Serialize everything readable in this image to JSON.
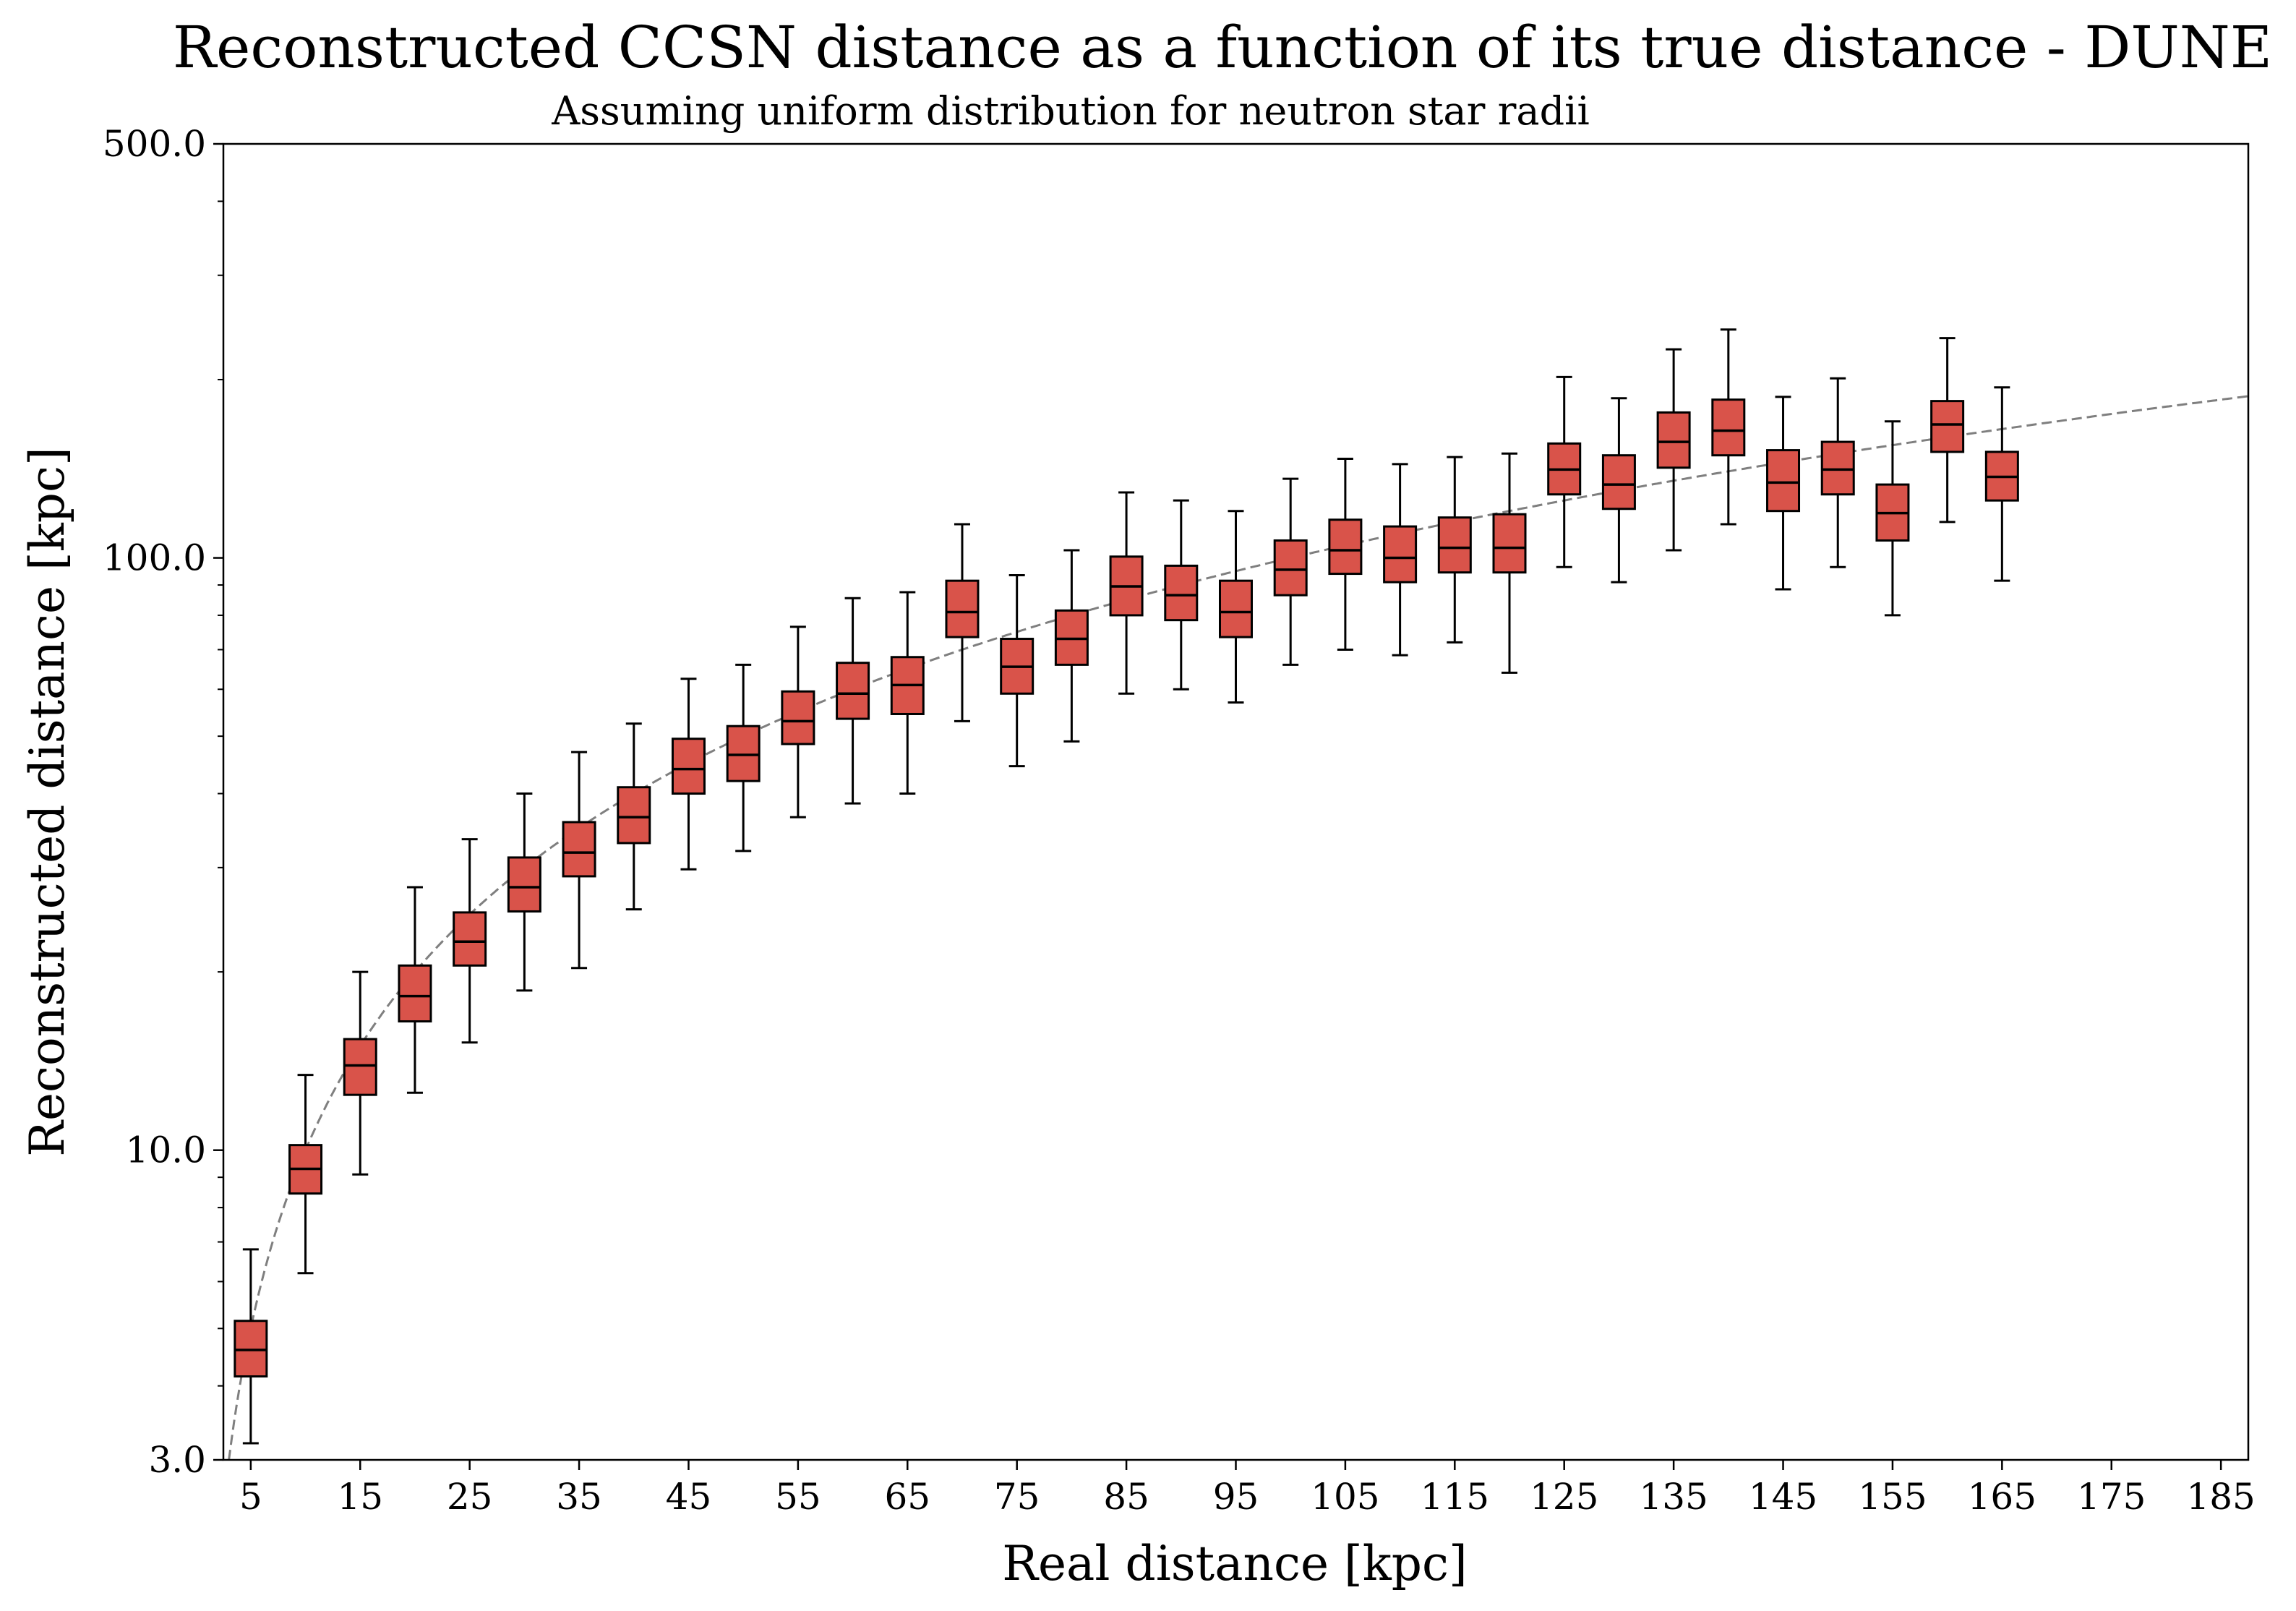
{
  "chart_data": {
    "type": "box",
    "title": "Reconstructed CCSN distance as a function of its true distance - DUNE",
    "subtitle": "Assuming uniform distribution for neutron star radii",
    "xlabel": "Real distance [kpc]",
    "ylabel": "Reconstructed distance [kpc]",
    "xlim": [
      2.5,
      187.5
    ],
    "ylim": [
      3.0,
      500.0
    ],
    "yscale": "log",
    "x_ticks": [
      "5",
      "15",
      "25",
      "35",
      "45",
      "55",
      "65",
      "75",
      "85",
      "95",
      "105",
      "115",
      "125",
      "135",
      "145",
      "155",
      "165",
      "175",
      "185"
    ],
    "y_ticks": [
      "3.0",
      "10.0",
      "100.0",
      "500.0"
    ],
    "grid": false,
    "legend": "none",
    "box_color": "#d9534a",
    "reference_line": {
      "style": "dashed",
      "color": "#7f7f7f",
      "relation": "y = x"
    },
    "boxes": [
      {
        "x": 5,
        "whisker_low": 3.2,
        "q1": 4.15,
        "median": 4.6,
        "q3": 5.15,
        "whisker_high": 6.8
      },
      {
        "x": 10,
        "whisker_low": 6.2,
        "q1": 8.45,
        "median": 9.3,
        "q3": 10.2,
        "whisker_high": 13.4
      },
      {
        "x": 15,
        "whisker_low": 9.1,
        "q1": 12.4,
        "median": 13.9,
        "q3": 15.4,
        "whisker_high": 20.0
      },
      {
        "x": 20,
        "whisker_low": 12.5,
        "q1": 16.5,
        "median": 18.2,
        "q3": 20.5,
        "whisker_high": 27.8
      },
      {
        "x": 25,
        "whisker_low": 15.2,
        "q1": 20.5,
        "median": 22.5,
        "q3": 25.2,
        "whisker_high": 33.5
      },
      {
        "x": 30,
        "whisker_low": 18.6,
        "q1": 25.3,
        "median": 27.8,
        "q3": 31.2,
        "whisker_high": 40.0
      },
      {
        "x": 35,
        "whisker_low": 20.3,
        "q1": 29.0,
        "median": 31.8,
        "q3": 35.8,
        "whisker_high": 47.0
      },
      {
        "x": 40,
        "whisker_low": 25.5,
        "q1": 33.0,
        "median": 36.5,
        "q3": 41.0,
        "whisker_high": 52.5
      },
      {
        "x": 45,
        "whisker_low": 29.8,
        "q1": 40.0,
        "median": 44.0,
        "q3": 49.5,
        "whisker_high": 62.5
      },
      {
        "x": 50,
        "whisker_low": 32.0,
        "q1": 42.0,
        "median": 46.5,
        "q3": 52.0,
        "whisker_high": 66.0
      },
      {
        "x": 55,
        "whisker_low": 36.5,
        "q1": 48.5,
        "median": 53.0,
        "q3": 59.5,
        "whisker_high": 76.5
      },
      {
        "x": 60,
        "whisker_low": 38.5,
        "q1": 53.5,
        "median": 59.0,
        "q3": 66.5,
        "whisker_high": 85.5
      },
      {
        "x": 65,
        "whisker_low": 40.0,
        "q1": 54.5,
        "median": 61.0,
        "q3": 68.0,
        "whisker_high": 87.5
      },
      {
        "x": 70,
        "whisker_low": 53.0,
        "q1": 73.5,
        "median": 81.0,
        "q3": 91.5,
        "whisker_high": 114.0
      },
      {
        "x": 75,
        "whisker_low": 44.5,
        "q1": 59.0,
        "median": 65.5,
        "q3": 73.0,
        "whisker_high": 93.5
      },
      {
        "x": 80,
        "whisker_low": 49.0,
        "q1": 66.0,
        "median": 73.0,
        "q3": 81.5,
        "whisker_high": 103.0
      },
      {
        "x": 85,
        "whisker_low": 59.0,
        "q1": 80.0,
        "median": 89.5,
        "q3": 100.5,
        "whisker_high": 129.0
      },
      {
        "x": 90,
        "whisker_low": 60.0,
        "q1": 78.5,
        "median": 86.5,
        "q3": 97.0,
        "whisker_high": 125.0
      },
      {
        "x": 95,
        "whisker_low": 57.0,
        "q1": 73.5,
        "median": 81.0,
        "q3": 91.5,
        "whisker_high": 120.0
      },
      {
        "x": 100,
        "whisker_low": 66.0,
        "q1": 86.5,
        "median": 95.5,
        "q3": 107.0,
        "whisker_high": 136.0
      },
      {
        "x": 105,
        "whisker_low": 70.0,
        "q1": 94.0,
        "median": 103.0,
        "q3": 116.0,
        "whisker_high": 147.0
      },
      {
        "x": 110,
        "whisker_low": 68.5,
        "q1": 91.0,
        "median": 100.0,
        "q3": 113.0,
        "whisker_high": 144.0
      },
      {
        "x": 115,
        "whisker_low": 72.0,
        "q1": 94.5,
        "median": 104.0,
        "q3": 117.0,
        "whisker_high": 148.0
      },
      {
        "x": 120,
        "whisker_low": 64.0,
        "q1": 94.5,
        "median": 104.0,
        "q3": 118.5,
        "whisker_high": 150.0
      },
      {
        "x": 125,
        "whisker_low": 96.5,
        "q1": 128.0,
        "median": 141.0,
        "q3": 156.0,
        "whisker_high": 202.0
      },
      {
        "x": 130,
        "whisker_low": 91.0,
        "q1": 121.0,
        "median": 133.0,
        "q3": 149.0,
        "whisker_high": 186.0
      },
      {
        "x": 135,
        "whisker_low": 103.0,
        "q1": 142.0,
        "median": 157.0,
        "q3": 176.0,
        "whisker_high": 225.0
      },
      {
        "x": 140,
        "whisker_low": 114.0,
        "q1": 149.0,
        "median": 164.0,
        "q3": 185.0,
        "whisker_high": 243.0
      },
      {
        "x": 145,
        "whisker_low": 88.5,
        "q1": 120.0,
        "median": 134.0,
        "q3": 152.0,
        "whisker_high": 187.0
      },
      {
        "x": 150,
        "whisker_low": 96.5,
        "q1": 128.0,
        "median": 141.0,
        "q3": 157.0,
        "whisker_high": 201.0
      },
      {
        "x": 155,
        "whisker_low": 80.0,
        "q1": 107.0,
        "median": 119.0,
        "q3": 133.0,
        "whisker_high": 170.0
      },
      {
        "x": 160,
        "whisker_low": 115.0,
        "q1": 151.0,
        "median": 168.0,
        "q3": 184.0,
        "whisker_high": 235.0
      },
      {
        "x": 165,
        "whisker_low": 91.5,
        "q1": 125.0,
        "median": 137.0,
        "q3": 151.0,
        "whisker_high": 194.0
      }
    ]
  }
}
